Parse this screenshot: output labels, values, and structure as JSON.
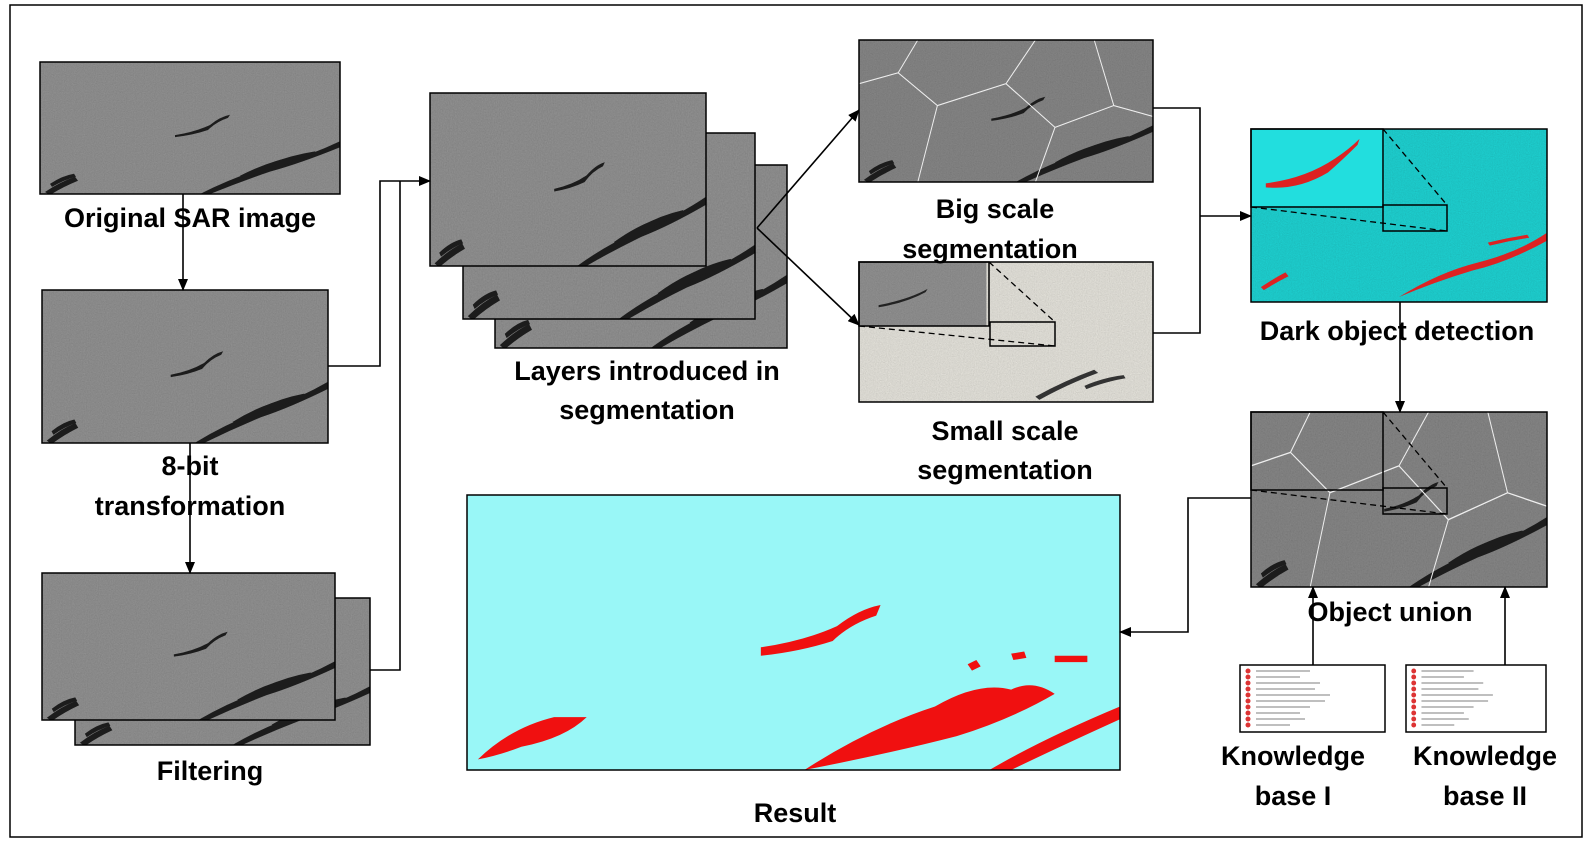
{
  "nodes": [
    {
      "label": [
        "Original SAR image"
      ]
    },
    {
      "label": [
        "8-bit",
        "transformation"
      ]
    },
    {
      "label": [
        "Filtering"
      ]
    },
    {
      "label": [
        "Layers introduced in",
        "segmentation"
      ]
    },
    {
      "label": [
        "Big scale",
        "segmentation"
      ]
    },
    {
      "label": [
        "Small scale",
        "segmentation"
      ]
    },
    {
      "label": [
        "Dark object detection"
      ]
    },
    {
      "label": [
        "Object union"
      ]
    },
    {
      "label": [
        "Knowledge",
        "base I"
      ]
    },
    {
      "label": [
        "Knowledge",
        "base II"
      ]
    },
    {
      "label": [
        "Result"
      ]
    }
  ]
}
